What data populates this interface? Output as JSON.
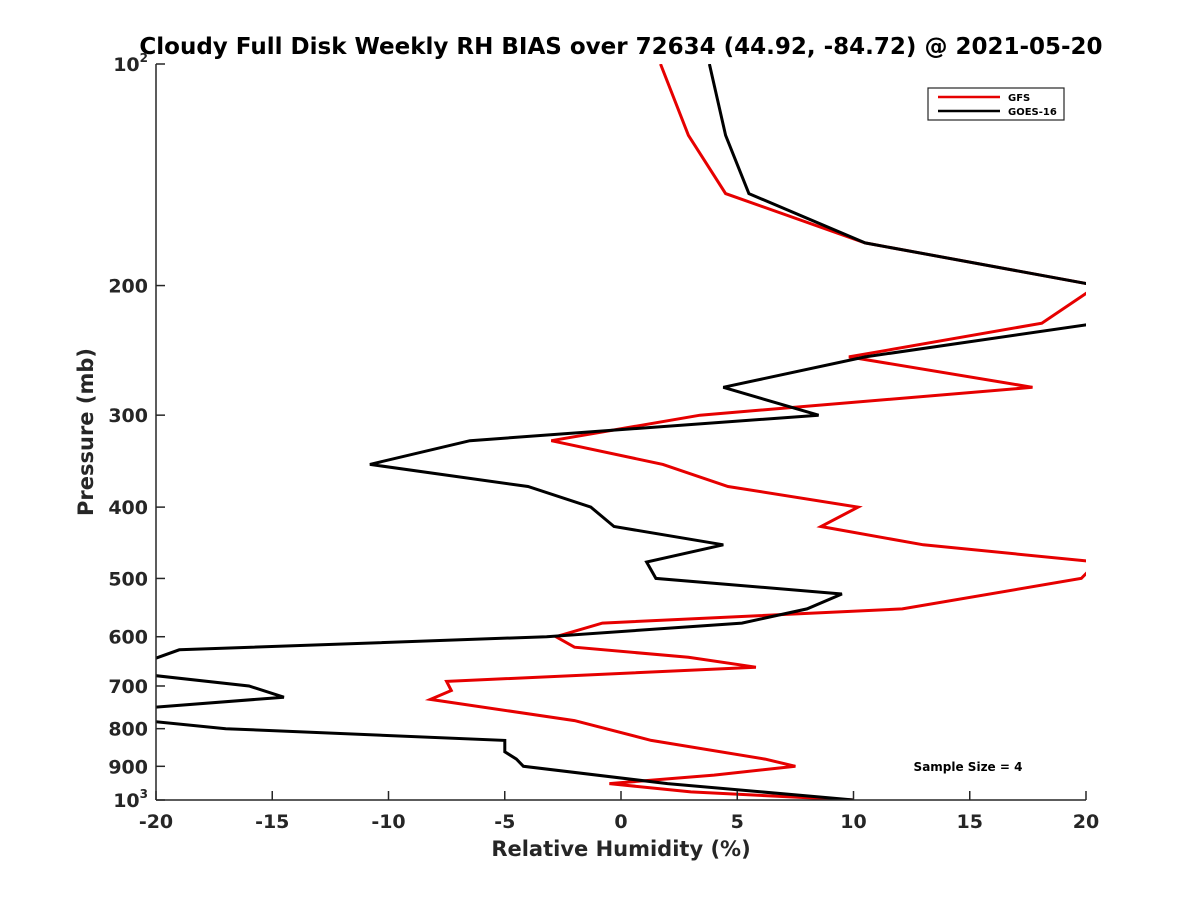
{
  "chart_data": {
    "type": "line",
    "title": "Cloudy Full Disk Weekly RH BIAS over 72634 (44.92, -84.72) @ 2021-05-20",
    "xlabel": "Relative Humidity (%)",
    "ylabel": "Pressure (mb)",
    "xlim": [
      -20,
      20
    ],
    "ylim": [
      100,
      1000
    ],
    "y_scale": "log",
    "y_reversed": true,
    "x_ticks": [
      -20,
      -15,
      -10,
      -5,
      0,
      5,
      10,
      15,
      20
    ],
    "x_tick_labels": [
      "-20",
      "-15",
      "-10",
      "-5",
      "0",
      "5",
      "10",
      "15",
      "20"
    ],
    "y_ticks": [
      {
        "value": 100,
        "base": "10",
        "exp": "2"
      },
      {
        "value": 200,
        "base": "200",
        "exp": ""
      },
      {
        "value": 300,
        "base": "300",
        "exp": ""
      },
      {
        "value": 400,
        "base": "400",
        "exp": ""
      },
      {
        "value": 500,
        "base": "500",
        "exp": ""
      },
      {
        "value": 600,
        "base": "600",
        "exp": ""
      },
      {
        "value": 700,
        "base": "700",
        "exp": ""
      },
      {
        "value": 800,
        "base": "800",
        "exp": ""
      },
      {
        "value": 900,
        "base": "900",
        "exp": ""
      },
      {
        "value": 1000,
        "base": "10",
        "exp": "3"
      }
    ],
    "grid": false,
    "legend_position": "top-right",
    "annotation": "Sample Size = 4",
    "series": [
      {
        "name": "GFS",
        "color": "#e60000",
        "points": [
          {
            "x": 1.7,
            "p": 100
          },
          {
            "x": 2.9,
            "p": 125
          },
          {
            "x": 4.5,
            "p": 150
          },
          {
            "x": 10.5,
            "p": 175
          },
          {
            "x": 20.5,
            "p": 200
          },
          {
            "x": 18.1,
            "p": 225
          },
          {
            "x": 9.8,
            "p": 250
          },
          {
            "x": 17.7,
            "p": 275
          },
          {
            "x": 3.4,
            "p": 300
          },
          {
            "x": -3.0,
            "p": 325
          },
          {
            "x": 1.8,
            "p": 350
          },
          {
            "x": 4.6,
            "p": 375
          },
          {
            "x": 10.2,
            "p": 400
          },
          {
            "x": 8.6,
            "p": 425
          },
          {
            "x": 13.0,
            "p": 450
          },
          {
            "x": 20.5,
            "p": 475
          },
          {
            "x": 19.8,
            "p": 500
          },
          {
            "x": 12.1,
            "p": 550
          },
          {
            "x": -0.8,
            "p": 575
          },
          {
            "x": -2.8,
            "p": 600
          },
          {
            "x": -2.0,
            "p": 620
          },
          {
            "x": 2.9,
            "p": 640
          },
          {
            "x": 5.8,
            "p": 660
          },
          {
            "x": -7.5,
            "p": 690
          },
          {
            "x": -7.3,
            "p": 710
          },
          {
            "x": -8.2,
            "p": 730
          },
          {
            "x": -2.0,
            "p": 780
          },
          {
            "x": 1.3,
            "p": 830
          },
          {
            "x": 6.2,
            "p": 880
          },
          {
            "x": 7.5,
            "p": 900
          },
          {
            "x": 4.0,
            "p": 925
          },
          {
            "x": -0.5,
            "p": 950
          },
          {
            "x": 3.0,
            "p": 975
          },
          {
            "x": 10.0,
            "p": 1000
          }
        ]
      },
      {
        "name": "GOES-16",
        "color": "#000000",
        "points": [
          {
            "x": 3.8,
            "p": 100
          },
          {
            "x": 4.5,
            "p": 125
          },
          {
            "x": 5.5,
            "p": 150
          },
          {
            "x": 10.5,
            "p": 175
          },
          {
            "x": 20.5,
            "p": 200
          },
          {
            "x": 20.5,
            "p": 225
          },
          {
            "x": 10.5,
            "p": 250
          },
          {
            "x": 4.4,
            "p": 275
          },
          {
            "x": 8.5,
            "p": 300
          },
          {
            "x": -6.5,
            "p": 325
          },
          {
            "x": -10.8,
            "p": 350
          },
          {
            "x": -4.0,
            "p": 375
          },
          {
            "x": -1.3,
            "p": 400
          },
          {
            "x": -0.3,
            "p": 425
          },
          {
            "x": 4.4,
            "p": 450
          },
          {
            "x": 1.1,
            "p": 475
          },
          {
            "x": 1.5,
            "p": 500
          },
          {
            "x": 9.5,
            "p": 525
          },
          {
            "x": 8.0,
            "p": 550
          },
          {
            "x": 5.2,
            "p": 575
          },
          {
            "x": -3.2,
            "p": 600
          },
          {
            "x": -19.0,
            "p": 625
          },
          {
            "x": -20.5,
            "p": 650
          },
          {
            "x": -20.5,
            "p": 675
          },
          {
            "x": -16.0,
            "p": 700
          },
          {
            "x": -14.5,
            "p": 725
          },
          {
            "x": -20.5,
            "p": 750
          },
          {
            "x": -20.5,
            "p": 780
          },
          {
            "x": -17.0,
            "p": 800
          },
          {
            "x": -5.0,
            "p": 830
          },
          {
            "x": -5.0,
            "p": 860
          },
          {
            "x": -4.5,
            "p": 880
          },
          {
            "x": -4.2,
            "p": 900
          },
          {
            "x": 2.0,
            "p": 950
          },
          {
            "x": 10.0,
            "p": 1000
          }
        ]
      }
    ]
  }
}
